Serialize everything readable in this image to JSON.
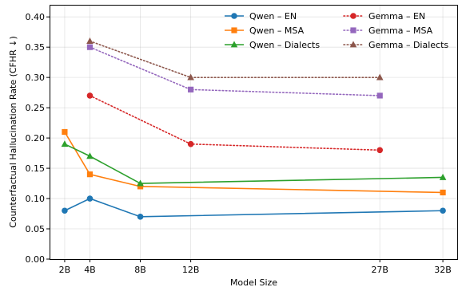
{
  "chart_data": {
    "type": "line",
    "title": "",
    "xlabel": "Model Size",
    "ylabel": "Counterfactual Hallucination Rate (CFHR ↓)",
    "x_ticks": [
      {
        "value": 2,
        "label": "2B"
      },
      {
        "value": 4,
        "label": "4B"
      },
      {
        "value": 8,
        "label": "8B"
      },
      {
        "value": 12,
        "label": "12B"
      },
      {
        "value": 27,
        "label": "27B"
      },
      {
        "value": 32,
        "label": "32B"
      }
    ],
    "y_ticks": [
      "0.00",
      "0.05",
      "0.10",
      "0.15",
      "0.20",
      "0.25",
      "0.30",
      "0.35",
      "0.40"
    ],
    "xlim": [
      0.8,
      33.2
    ],
    "ylim": [
      0.0,
      0.42
    ],
    "grid": true,
    "legend_position": "top-right",
    "series": [
      {
        "name": "Qwen – EN",
        "color": "#1f77b4",
        "marker": "circle",
        "style": "solid",
        "x": [
          2,
          4,
          8,
          32
        ],
        "y": [
          0.08,
          0.1,
          0.07,
          0.08
        ]
      },
      {
        "name": "Qwen – MSA",
        "color": "#ff7f0e",
        "marker": "square",
        "style": "solid",
        "x": [
          2,
          4,
          8,
          32
        ],
        "y": [
          0.21,
          0.14,
          0.12,
          0.11
        ]
      },
      {
        "name": "Qwen – Dialects",
        "color": "#2ca02c",
        "marker": "triangle",
        "style": "solid",
        "x": [
          2,
          4,
          8,
          32
        ],
        "y": [
          0.19,
          0.17,
          0.125,
          0.135
        ]
      },
      {
        "name": "Gemma – EN",
        "color": "#d62728",
        "marker": "circle",
        "style": "dotted",
        "x": [
          4,
          12,
          27
        ],
        "y": [
          0.27,
          0.19,
          0.18
        ]
      },
      {
        "name": "Gemma – MSA",
        "color": "#9467bd",
        "marker": "square",
        "style": "dotted",
        "x": [
          4,
          12,
          27
        ],
        "y": [
          0.35,
          0.28,
          0.27
        ]
      },
      {
        "name": "Gemma – Dialects",
        "color": "#8c564b",
        "marker": "triangle",
        "style": "dotted",
        "x": [
          4,
          12,
          27
        ],
        "y": [
          0.36,
          0.3,
          0.3
        ]
      }
    ]
  }
}
